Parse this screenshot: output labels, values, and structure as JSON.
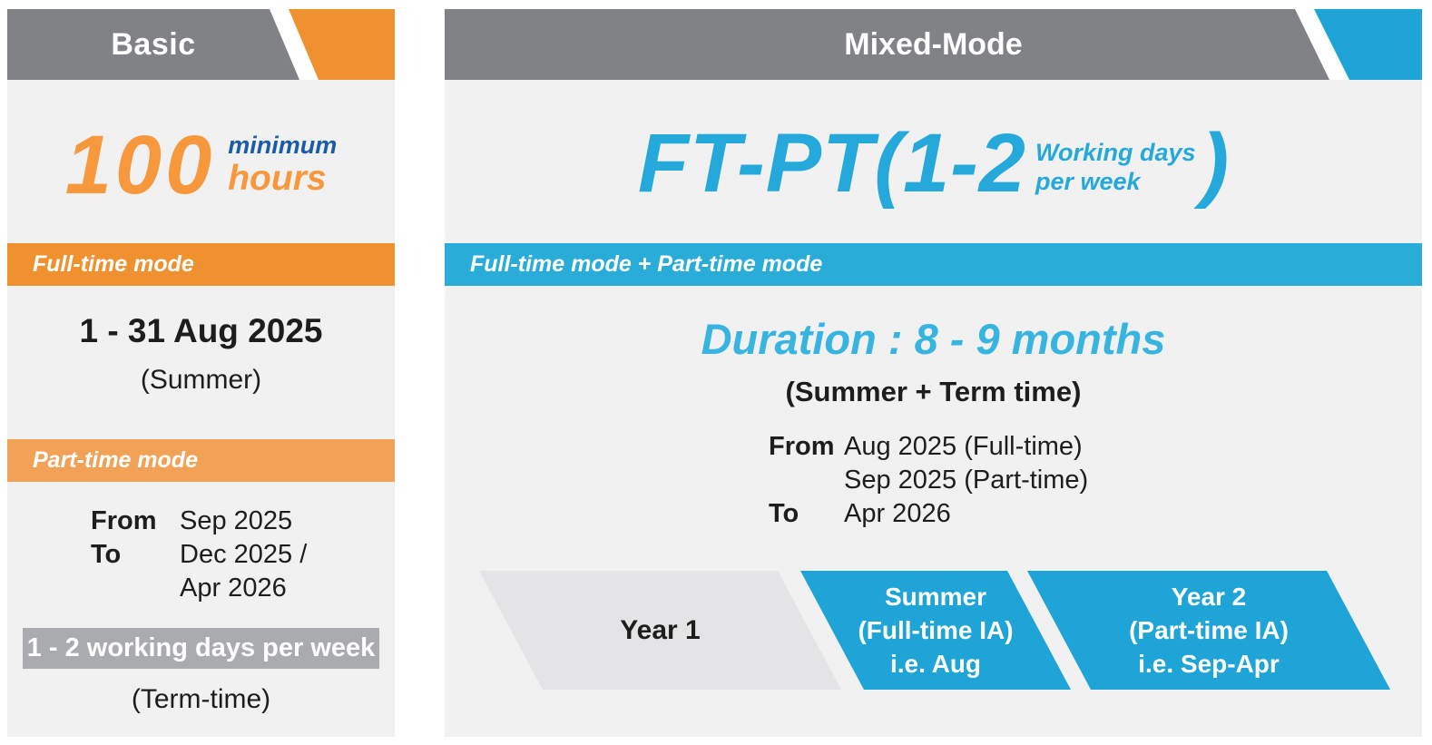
{
  "colors": {
    "header_gray": "#808285",
    "panel_background": "#f1f1f2",
    "orange_dark": "#f0912f",
    "orange_light": "#f2a257",
    "orange_text": "#f7983c",
    "blue_accent": "#1ea4d6",
    "blue_duration_text": "#38b4e0",
    "blue_minimum_text": "#1a5ca8",
    "badge_gray": "#a9abae",
    "timeline_gray": "#e4e4e6"
  },
  "basic_panel": {
    "header": "Basic",
    "hours_number": "100",
    "hours_label_top": "minimum",
    "hours_label_bottom": "hours",
    "fulltime_bar_label": "Full-time mode",
    "fulltime_date": "1 - 31 Aug 2025",
    "fulltime_note": "(Summer)",
    "parttime_bar_label": "Part-time mode",
    "schedule": [
      {
        "label": "From",
        "value": "Sep 2025"
      },
      {
        "label": "To",
        "value": "Dec 2025 /"
      },
      {
        "label": "",
        "value": "Apr 2026"
      }
    ],
    "badge": "1 - 2 working days per week",
    "footer_note": "(Term-time)"
  },
  "mixed_panel": {
    "header": "Mixed-Mode",
    "title_main": "FT-PT(1-2",
    "title_small_top": "Working days",
    "title_small_bottom": "per week",
    "title_close": ")",
    "mode_bar_label": "Full-time mode + Part-time mode",
    "duration": "Duration : 8 - 9 months",
    "duration_note": "(Summer + Term time)",
    "schedule": [
      {
        "label": "From",
        "value": "Aug 2025 (Full-time)"
      },
      {
        "label": "",
        "value": "Sep 2025 (Part-time)"
      },
      {
        "label": "To",
        "value": "Apr 2026"
      }
    ],
    "timeline": [
      {
        "line1": "Year 1",
        "line2": "",
        "line3": ""
      },
      {
        "line1": "Summer",
        "line2": "(Full-time IA)",
        "line3": "i.e. Aug"
      },
      {
        "line1": "Year 2",
        "line2": "(Part-time IA)",
        "line3": "i.e. Sep-Apr"
      }
    ]
  }
}
